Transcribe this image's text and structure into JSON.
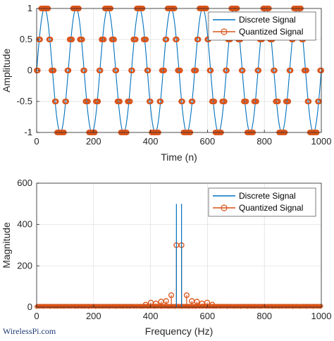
{
  "watermark": "WirelessPi.com",
  "colors": {
    "discrete": "#0072BD",
    "quantized": "#D95319",
    "grid": "#dddddd",
    "axis": "#262626"
  },
  "chart_data": [
    {
      "type": "line",
      "xlabel": "Time (n)",
      "ylabel": "Amplitude",
      "xlim": [
        0,
        1000
      ],
      "ylim": [
        -1,
        1
      ],
      "xticks": [
        "0",
        "200",
        "400",
        "600",
        "800",
        "1000"
      ],
      "yticks": [
        "1",
        "0.5",
        "0",
        "-0.5",
        "-1"
      ],
      "grid": true,
      "legend_position": "top-right",
      "legend": [
        "Discrete Signal",
        "Quantized Signal"
      ],
      "series": [
        {
          "name": "Discrete Signal",
          "function": "sin(2*pi*9*n/1000)",
          "x_range": [
            0,
            1000
          ],
          "style": "line"
        },
        {
          "name": "Quantized Signal",
          "levels": [
            -1,
            -0.5,
            0,
            0.5,
            1
          ],
          "step": 0.5,
          "style": "markers"
        }
      ]
    },
    {
      "type": "line",
      "xlabel": "Frequency (Hz)",
      "ylabel": "Magnitude",
      "xlim": [
        0,
        1000
      ],
      "ylim": [
        0,
        600
      ],
      "xticks": [
        "0",
        "200",
        "400",
        "600",
        "800",
        "1000"
      ],
      "yticks": [
        "600",
        "400",
        "200",
        "0"
      ],
      "grid": true,
      "legend_position": "top-right",
      "legend": [
        "Discrete Signal",
        "Quantized Signal"
      ],
      "series": [
        {
          "name": "Discrete Signal",
          "x": [
            491,
            509
          ],
          "values": [
            500,
            500
          ],
          "style": "stem"
        },
        {
          "name": "Quantized Signal",
          "x": [
            491,
            509,
            473,
            527,
            455,
            545,
            437,
            563,
            419,
            581,
            401,
            599,
            383,
            617
          ],
          "values": [
            300,
            300,
            58,
            58,
            30,
            30,
            27,
            27,
            18,
            18,
            22,
            22,
            12,
            12
          ],
          "style": "stem-markers"
        }
      ]
    }
  ]
}
